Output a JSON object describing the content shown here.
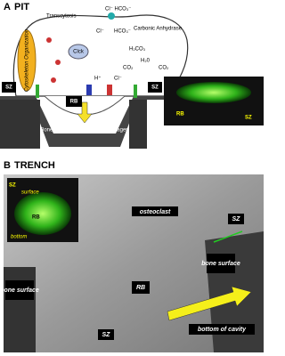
{
  "panel_a": {
    "letter": "A",
    "title": "PIT",
    "labels": {
      "transcytosis": "Transcytosis",
      "cl_hco3_top": "Cl⁻ HCO₃⁻",
      "cytoskeleton": "Cytoskeleton Organization",
      "clck": "Clck",
      "cl_left": "Cl⁻",
      "hco3": "HCO₃⁻",
      "carbonic": "Carbonic Anhydrase",
      "h2co3": "H₂CO₃",
      "h2o": "H₂0",
      "co2_left": "CO₂",
      "co2_right": "CO₂",
      "h_plus": "H⁺",
      "cl_bottom": "Cl⁻",
      "sz_left": "SZ",
      "rb": "RB",
      "sz_right": "SZ",
      "bone": "Bone: Hydroxyapatite Type I collagen"
    },
    "inset": {
      "rb": "RB",
      "sz": "SZ"
    }
  },
  "panel_b": {
    "letter": "B",
    "title": "TRENCH",
    "inset": {
      "sz": "SZ",
      "surface": "surface",
      "rb": "RB",
      "bottom": "bottom"
    },
    "labels": {
      "osteoclast": "osteoclast",
      "sz_right": "SZ",
      "bone_surface_right": "bone surface",
      "bone_surface_left": "bone surface",
      "rb": "RB",
      "sz_bottom": "SZ",
      "bottom_of_cavity": "bottom of cavity"
    }
  }
}
